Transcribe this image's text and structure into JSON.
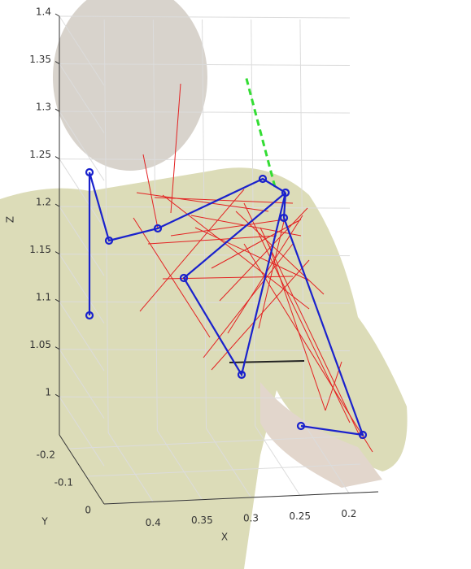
{
  "chart_data": {
    "type": "line3d",
    "xlabel": "X",
    "ylabel": "Y",
    "zlabel": "Z",
    "xlim": [
      0.45,
      0.17
    ],
    "xticks": [
      0.4,
      0.35,
      0.3,
      0.25,
      0.2
    ],
    "ylim": [
      -0.25,
      0
    ],
    "yticks": [
      -0.2,
      -0.1,
      0
    ],
    "zlim": [
      0.96,
      1.4
    ],
    "zticks": [
      1.4,
      1.35,
      1.3,
      1.25,
      1.2,
      1.15,
      1.1,
      1.05,
      1
    ],
    "grid": true
  }
}
